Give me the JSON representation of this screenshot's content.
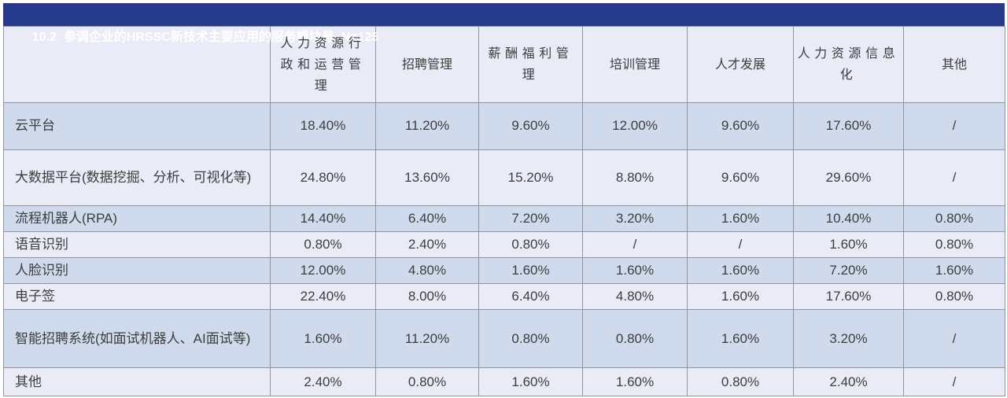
{
  "title": "10.2  参调企业的HRSSC新技术主要应用的服务模块是  N=125",
  "colors": {
    "title_bar": "#263B8C",
    "row_alt": "#CFDAEC",
    "row_base": "#E9ECF6",
    "grid": "#8F949D",
    "text": "#3D3D3D",
    "title_text": "#FFFFFF"
  },
  "chart_data": {
    "type": "table",
    "title": "10.2 参调企业的HRSSC新技术主要应用的服务模块是 N=125",
    "sample_size": "N=125",
    "columns": [
      "",
      "人力资源行政和运营管理",
      "招聘管理",
      "薪酬福利管理",
      "培训管理",
      "人才发展",
      "人力资源信息化",
      "其他"
    ],
    "rows": [
      {
        "label": "云平台",
        "values": [
          "18.40%",
          "11.20%",
          "9.60%",
          "12.00%",
          "9.60%",
          "17.60%",
          "/"
        ]
      },
      {
        "label": "大数据平台(数据挖掘、分析、可视化等)",
        "values": [
          "24.80%",
          "13.60%",
          "15.20%",
          "8.80%",
          "9.60%",
          "29.60%",
          "/"
        ]
      },
      {
        "label": "流程机器人(RPA)",
        "values": [
          "14.40%",
          "6.40%",
          "7.20%",
          "3.20%",
          "1.60%",
          "10.40%",
          "0.80%"
        ]
      },
      {
        "label": "语音识别",
        "values": [
          "0.80%",
          "2.40%",
          "0.80%",
          "/",
          "/",
          "1.60%",
          "0.80%"
        ]
      },
      {
        "label": "人脸识别",
        "values": [
          "12.00%",
          "4.80%",
          "1.60%",
          "1.60%",
          "1.60%",
          "7.20%",
          "1.60%"
        ]
      },
      {
        "label": "电子签",
        "values": [
          "22.40%",
          "8.00%",
          "6.40%",
          "4.80%",
          "1.60%",
          "17.60%",
          "0.80%"
        ]
      },
      {
        "label": "智能招聘系统(如面试机器人、AI面试等)",
        "values": [
          "1.60%",
          "11.20%",
          "0.80%",
          "0.80%",
          "1.60%",
          "3.20%",
          "/"
        ]
      },
      {
        "label": "其他",
        "values": [
          "2.40%",
          "0.80%",
          "1.60%",
          "1.60%",
          "0.80%",
          "2.40%",
          "/"
        ]
      }
    ]
  }
}
